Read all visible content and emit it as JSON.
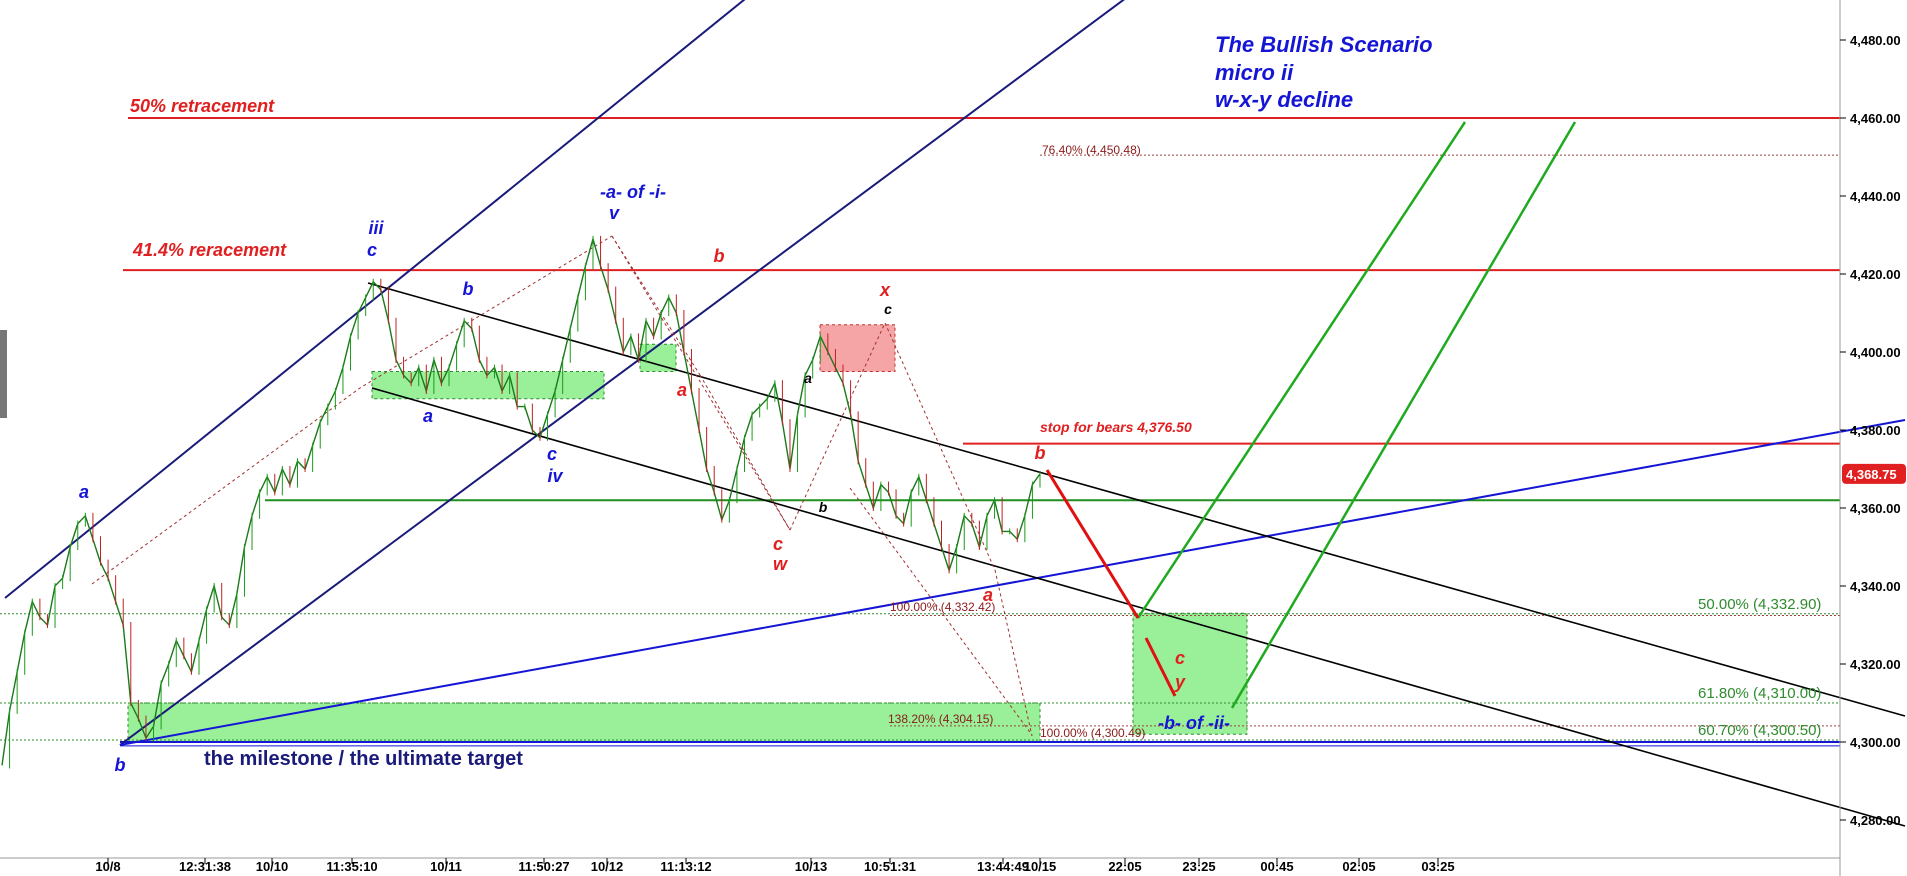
{
  "chart_data": {
    "type": "line",
    "title": "The Bullish Scenario",
    "subtitle_lines": [
      "micro ii",
      "w-x-y decline"
    ],
    "xlabel": "",
    "ylabel": "",
    "ylim": [
      4270,
      4492
    ],
    "y_ticks": [
      4280,
      4300,
      4320,
      4340,
      4360,
      4380,
      4400,
      4420,
      4440,
      4460,
      4480
    ],
    "y_tick_labels": [
      "4,280.00",
      "4,300.00",
      "4,320.00",
      "4,340.00",
      "4,360.00",
      "4,380.00",
      "4,400.00",
      "4,420.00",
      "4,440.00",
      "4,460.00",
      "4,480.00"
    ],
    "x_tick_labels": [
      "10/8",
      "12:31:38",
      "10/10",
      "11:35:10",
      "10/11",
      "11:50:27",
      "10/12",
      "11:13:12",
      "10/13",
      "10:51:31",
      "13:44:49",
      "10/15",
      "22:05",
      "23:25",
      "00:45",
      "02:05",
      "03:25"
    ],
    "last_price": 4368.75,
    "last_price_label": "4,368.75",
    "series": [
      {
        "values": [
          4294,
          4308,
          4318,
          4328,
          4336,
          4332,
          4330,
          4340,
          4342,
          4350,
          4356,
          4358,
          4352,
          4346,
          4342,
          4336,
          4330,
          4310,
          4306,
          4301,
          4304,
          4315,
          4320,
          4326,
          4322,
          4318,
          4326,
          4334,
          4340,
          4332,
          4330,
          4338,
          4350,
          4358,
          4364,
          4368,
          4364,
          4370,
          4366,
          4372,
          4370,
          4376,
          4382,
          4386,
          4390,
          4396,
          4404,
          4410,
          4414,
          4418,
          4416,
          4408,
          4398,
          4394,
          4392,
          4396,
          4390,
          4398,
          4392,
          4396,
          4402,
          4408,
          4406,
          4398,
          4394,
          4396,
          4390,
          4394,
          4386,
          4386,
          4380,
          4378,
          4384,
          4390,
          4398,
          4406,
          4414,
          4422,
          4429,
          4422,
          4416,
          4408,
          4400,
          4404,
          4398,
          4408,
          4404,
          4410,
          4414,
          4410,
          4400,
          4390,
          4380,
          4370,
          4364,
          4357,
          4362,
          4370,
          4378,
          4384,
          4386,
          4388,
          4392,
          4382,
          4370,
          4384,
          4394,
          4398,
          4404,
          4400,
          4396,
          4392,
          4384,
          4372,
          4366,
          4360,
          4366,
          4364,
          4358,
          4356,
          4364,
          4368,
          4362,
          4356,
          4350,
          4344,
          4350,
          4358,
          4356,
          4350,
          4358,
          4362,
          4354,
          4354,
          4352,
          4358,
          4366,
          4368.75
        ]
      }
    ],
    "horizontal_lines": [
      {
        "value": 4460,
        "label": "50% retracement",
        "color": "#e02020"
      },
      {
        "value": 4421,
        "label": "41.4% reracement",
        "color": "#e02020"
      },
      {
        "value": 4376.5,
        "label": "stop for bears 4,376.50",
        "color": "#e02020"
      },
      {
        "value": 4362,
        "label": "",
        "color": "#1f8f1f"
      },
      {
        "value": 4300,
        "label": "",
        "color": "#1515d6"
      }
    ],
    "fib_labels_red": [
      "76.40% (4,450.48)",
      "100.00% (4,332.42)",
      "138.20% (4,304.15)",
      "100.00% (4,300.49)"
    ],
    "fib_labels_green": [
      "50.00% (4,332.90)",
      "61.80% (4,310.00)",
      "60.70% (4,300.50)"
    ],
    "text_notes": [
      "the milestone / the ultimate target",
      "-a- of -i-",
      "-b- of -ii-"
    ],
    "wave_labels": {
      "blue": [
        "a",
        "b",
        "iii",
        "c",
        "b",
        "a",
        "c",
        "iv",
        "v"
      ],
      "red": [
        "b",
        "a",
        "c",
        "w",
        "x",
        "b",
        "a",
        "c",
        "y"
      ],
      "black": [
        "a",
        "b",
        "c"
      ]
    },
    "grid": false,
    "legend": "none"
  }
}
